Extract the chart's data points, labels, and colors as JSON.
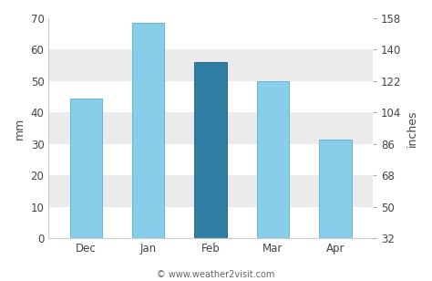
{
  "categories": [
    "Dec",
    "Jan",
    "Feb",
    "Mar",
    "Apr"
  ],
  "values": [
    44.5,
    68.5,
    56.0,
    50.0,
    31.5
  ],
  "bar_colors": [
    "#87ceeb",
    "#87ceeb",
    "#2e7fa3",
    "#87ceeb",
    "#87ceeb"
  ],
  "bar_edgecolors": [
    "#5aabcf",
    "#5aabcf",
    "#1a5f7a",
    "#5aabcf",
    "#5aabcf"
  ],
  "left_ylabel": "mm",
  "right_ylabel": "inches",
  "ylim_mm": [
    0,
    70
  ],
  "yticks_mm": [
    0,
    10,
    20,
    30,
    40,
    50,
    60,
    70
  ],
  "yticks_inches": [
    32,
    50,
    68,
    86,
    104,
    122,
    140,
    158
  ],
  "copyright_text": "© www.weather2visit.com",
  "background_color": "#ffffff",
  "plot_bg_color": "#ffffff",
  "band_colors_list": [
    "#ffffff",
    "#ebebeb",
    "#ffffff",
    "#ebebeb",
    "#ffffff",
    "#ebebeb",
    "#ffffff"
  ],
  "band_ranges": [
    [
      60,
      70
    ],
    [
      50,
      60
    ],
    [
      40,
      50
    ],
    [
      30,
      40
    ],
    [
      20,
      30
    ],
    [
      10,
      20
    ],
    [
      0,
      10
    ]
  ],
  "tick_fontsize": 8.5,
  "axis_fontsize": 9,
  "bar_width": 0.52
}
